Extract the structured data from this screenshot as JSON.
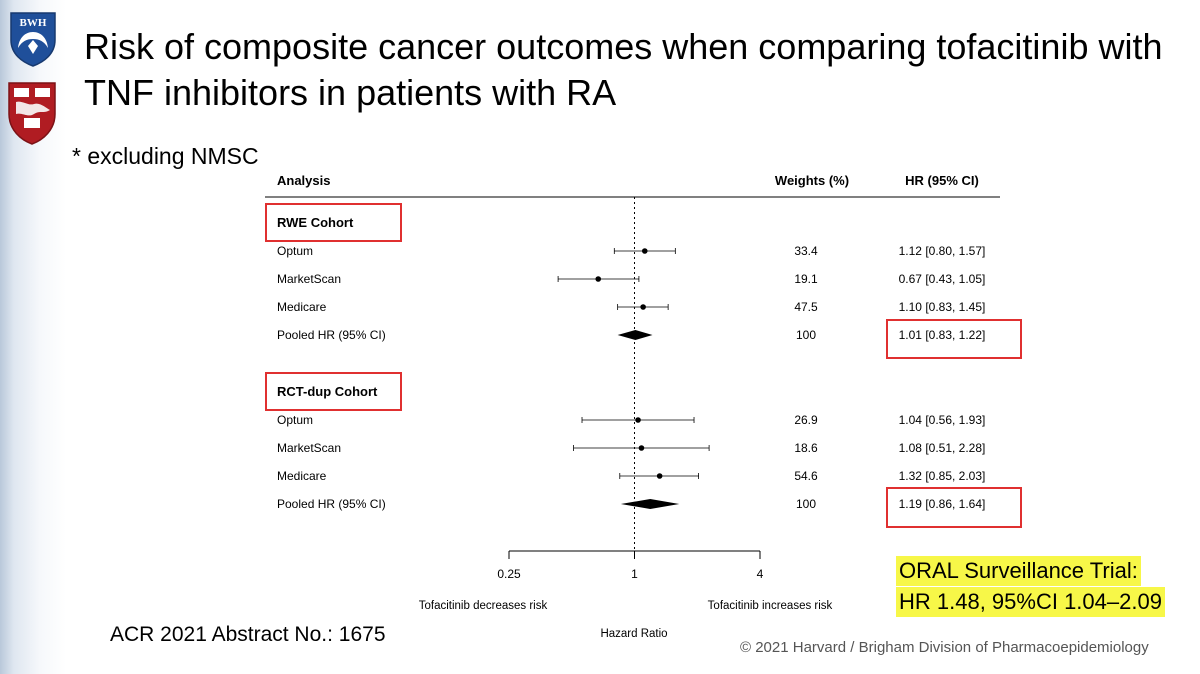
{
  "slide": {
    "title": "Risk of composite cancer outcomes when comparing tofacitinib with TNF inhibitors in patients with RA",
    "subtitle": "* excluding NMSC",
    "abstract_note": "ACR 2021 Abstract No.: 1675",
    "copyright": "© 2021 Harvard / Brigham Division of Pharmacoepidemiology",
    "callout_line1": "ORAL Surveillance Trial:",
    "callout_line2": "HR 1.48, 95%CI 1.04–2.09",
    "logo_top_text": "BWH"
  },
  "chart_data": {
    "type": "forest",
    "headers": {
      "analysis": "Analysis",
      "weights": "Weights (%)",
      "hr": "HR (95% CI)"
    },
    "x_axis": {
      "scale": "log",
      "ticks": [
        0.25,
        1,
        4
      ],
      "tick_labels": [
        "0.25",
        "1",
        "4"
      ],
      "xlim": [
        0.25,
        4
      ],
      "reference_line": 1,
      "xlabel": "Hazard Ratio",
      "left_annotation": "Tofacitinib decreases risk",
      "right_annotation": "Tofacitinib increases risk"
    },
    "groups": [
      {
        "name": "RWE Cohort",
        "rows": [
          {
            "label": "Optum",
            "weight": "33.4",
            "hr": 1.12,
            "lo": 0.8,
            "hi": 1.57,
            "text": "1.12 [0.80, 1.57]"
          },
          {
            "label": "MarketScan",
            "weight": "19.1",
            "hr": 0.67,
            "lo": 0.43,
            "hi": 1.05,
            "text": "0.67 [0.43, 1.05]"
          },
          {
            "label": "Medicare",
            "weight": "47.5",
            "hr": 1.1,
            "lo": 0.83,
            "hi": 1.45,
            "text": "1.10 [0.83, 1.45]"
          }
        ],
        "pooled": {
          "label": "Pooled HR (95% CI)",
          "weight": "100",
          "hr": 1.01,
          "lo": 0.83,
          "hi": 1.22,
          "text": "1.01 [0.83, 1.22]"
        }
      },
      {
        "name": "RCT-dup Cohort",
        "rows": [
          {
            "label": "Optum",
            "weight": "26.9",
            "hr": 1.04,
            "lo": 0.56,
            "hi": 1.93,
            "text": "1.04 [0.56, 1.93]"
          },
          {
            "label": "MarketScan",
            "weight": "18.6",
            "hr": 1.08,
            "lo": 0.51,
            "hi": 2.28,
            "text": "1.08 [0.51, 2.28]"
          },
          {
            "label": "Medicare",
            "weight": "54.6",
            "hr": 1.32,
            "lo": 0.85,
            "hi": 2.03,
            "text": "1.32 [0.85, 2.03]"
          }
        ],
        "pooled": {
          "label": "Pooled HR (95% CI)",
          "weight": "100",
          "hr": 1.19,
          "lo": 0.86,
          "hi": 1.64,
          "text": "1.19 [0.86, 1.64]"
        }
      }
    ],
    "colors": {
      "highlight_box": "#e03030",
      "callout_bg": "#f7f748"
    }
  }
}
